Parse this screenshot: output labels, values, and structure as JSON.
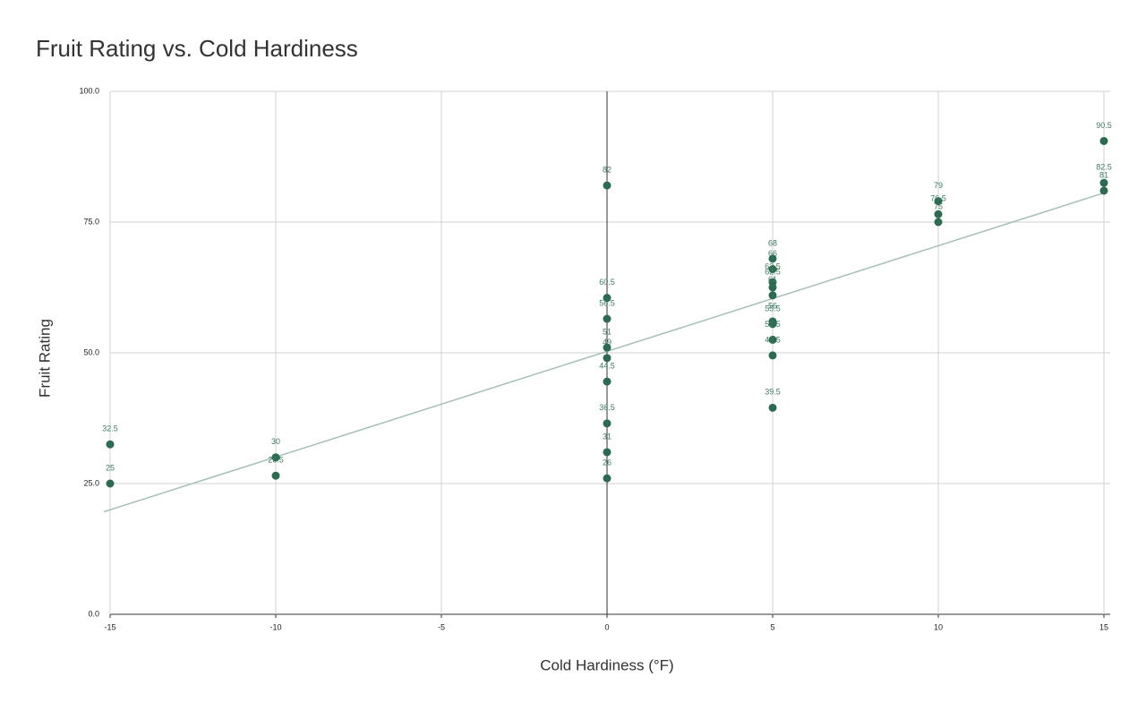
{
  "chart_data": {
    "type": "scatter",
    "title": "Fruit Rating vs. Cold Hardiness",
    "x_label": "Cold Hardiness (°F)",
    "y_label": "Fruit Rating",
    "x": [
      -15,
      -15,
      -10,
      -10,
      0,
      0,
      0,
      0,
      0,
      0,
      0,
      0,
      0,
      5,
      5,
      5,
      5,
      5,
      5,
      5,
      5,
      5,
      5,
      10,
      10,
      10,
      15,
      15,
      15
    ],
    "series": [
      {
        "color": "#2d6a52",
        "values": [
          32.5,
          25,
          30,
          26.5,
          82,
          60.5,
          56.5,
          51,
          49,
          44.5,
          36.5,
          31,
          26,
          68,
          66,
          63.5,
          62.5,
          61,
          56,
          55.5,
          52.5,
          49.5,
          39.5,
          79,
          76.5,
          75,
          90.5,
          82.5,
          81
        ]
      }
    ],
    "xlim": [
      -15,
      15
    ],
    "ylim": [
      0,
      100
    ],
    "xticks": [
      -15,
      -10,
      -5,
      0,
      5,
      10,
      15
    ],
    "yticks": [
      {
        "value": 0,
        "label": "0.0"
      },
      {
        "value": 25,
        "label": "25.0"
      },
      {
        "value": 50,
        "label": "50.0"
      },
      {
        "value": 75,
        "label": "75.0"
      },
      {
        "value": 100,
        "label": "100.0"
      }
    ],
    "grid": true,
    "trendline": true,
    "trendline_color": "#a5bfb5",
    "data_labels": true
  }
}
